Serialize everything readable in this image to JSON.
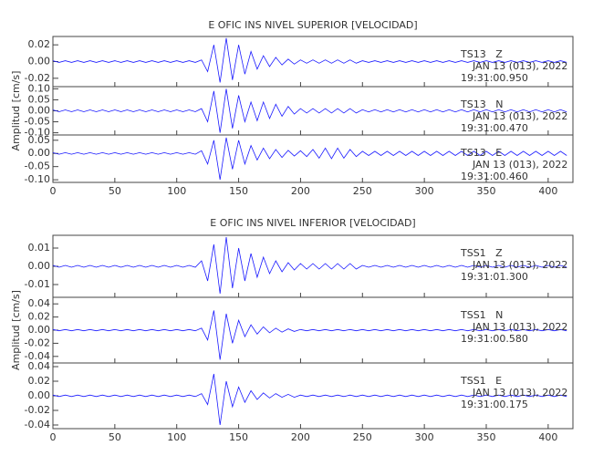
{
  "chart_data": [
    {
      "type": "line",
      "title": "E OFIC INS NIVEL SUPERIOR [VELOCIDAD]",
      "y_label": "Amplitud [cm/s]",
      "x": [
        0,
        5,
        10,
        15,
        20,
        25,
        30,
        35,
        40,
        45,
        50,
        55,
        60,
        65,
        70,
        75,
        80,
        85,
        90,
        95,
        100,
        105,
        110,
        115,
        120,
        125,
        130,
        135,
        140,
        145,
        150,
        155,
        160,
        165,
        170,
        175,
        180,
        185,
        190,
        195,
        200,
        205,
        210,
        215,
        220,
        225,
        230,
        235,
        240,
        245,
        250,
        255,
        260,
        265,
        270,
        275,
        280,
        285,
        290,
        295,
        300,
        305,
        310,
        315,
        320,
        325,
        330,
        335,
        340,
        345,
        350,
        355,
        360,
        365,
        370,
        375,
        380,
        385,
        390,
        395,
        400,
        405,
        410,
        415
      ],
      "xlim": [
        0,
        420
      ],
      "xticks": [
        0,
        50,
        100,
        150,
        200,
        250,
        300,
        350,
        400
      ],
      "panels": [
        {
          "ylim": [
            -0.03,
            0.03
          ],
          "yticks": [
            {
              "value": 0.02,
              "label": "0.02"
            },
            {
              "value": 0,
              "label": "0.00"
            },
            {
              "value": -0.02,
              "label": "-0.02"
            }
          ],
          "date": "JAN 13 (013), 2022",
          "time": "19:31:00.950",
          "series": [
            {
              "name": "TS13   Z",
              "color": "#1a1aff",
              "values": [
                0.001,
                -0.001,
                0.001,
                -0.001,
                0.001,
                -0.001,
                0.001,
                -0.001,
                0.001,
                -0.001,
                0.001,
                -0.001,
                0.001,
                -0.001,
                0.001,
                -0.001,
                0.001,
                -0.001,
                0.001,
                -0.001,
                0.001,
                -0.001,
                0.001,
                -0.001,
                0.002,
                -0.012,
                0.02,
                -0.025,
                0.028,
                -0.022,
                0.02,
                -0.015,
                0.012,
                -0.009,
                0.007,
                -0.006,
                0.005,
                -0.004,
                0.003,
                -0.003,
                0.002,
                -0.002,
                0.002,
                -0.002,
                0.002,
                -0.002,
                0.002,
                -0.002,
                0.002,
                -0.002,
                0.001,
                -0.001,
                0.001,
                -0.001,
                0.001,
                -0.001,
                0.001,
                -0.001,
                0.001,
                -0.001,
                0.001,
                -0.001,
                0.001,
                -0.001,
                0.001,
                -0.001,
                0.001,
                -0.001,
                0.001,
                -0.001,
                0.001,
                -0.001,
                0.001,
                -0.001,
                0.001,
                -0.001,
                0.001,
                -0.001,
                0.001,
                -0.001,
                0.001,
                -0.001,
                0.001,
                -0.001
              ]
            }
          ]
        },
        {
          "ylim": [
            -0.11,
            0.11
          ],
          "yticks": [
            {
              "value": 0.1,
              "label": "0.10"
            },
            {
              "value": 0.05,
              "label": "0.05"
            },
            {
              "value": 0,
              "label": "0.00"
            },
            {
              "value": -0.05,
              "label": "-0.05"
            },
            {
              "value": -0.1,
              "label": "-0.10"
            }
          ],
          "date": "JAN 13 (013), 2022",
          "time": "19:31:00.470",
          "series": [
            {
              "name": "TS13   N",
              "color": "#1a1aff",
              "values": [
                0.004,
                -0.004,
                0.004,
                -0.004,
                0.004,
                -0.004,
                0.004,
                -0.004,
                0.004,
                -0.004,
                0.004,
                -0.004,
                0.004,
                -0.004,
                0.004,
                -0.004,
                0.004,
                -0.004,
                0.004,
                -0.004,
                0.004,
                -0.004,
                0.004,
                -0.004,
                0.01,
                -0.05,
                0.09,
                -0.1,
                0.1,
                -0.08,
                0.07,
                -0.05,
                0.04,
                -0.045,
                0.04,
                -0.035,
                0.03,
                -0.025,
                0.02,
                -0.015,
                0.01,
                -0.01,
                0.01,
                -0.01,
                0.01,
                -0.01,
                0.01,
                -0.01,
                0.01,
                -0.01,
                0.005,
                -0.005,
                0.005,
                -0.005,
                0.005,
                -0.005,
                0.005,
                -0.005,
                0.005,
                -0.005,
                0.005,
                -0.005,
                0.005,
                -0.005,
                0.005,
                -0.005,
                0.005,
                -0.005,
                0.005,
                -0.005,
                0.005,
                -0.005,
                0.005,
                -0.005,
                0.005,
                -0.005,
                0.005,
                -0.005,
                0.005,
                -0.005,
                0.005,
                -0.005,
                0.005,
                -0.005
              ]
            }
          ]
        },
        {
          "ylim": [
            -0.11,
            0.07
          ],
          "yticks": [
            {
              "value": 0.05,
              "label": "0.05"
            },
            {
              "value": 0,
              "label": "0.00"
            },
            {
              "value": -0.05,
              "label": "-0.05"
            },
            {
              "value": -0.1,
              "label": "-0.10"
            }
          ],
          "date": "JAN 13 (013), 2022",
          "time": "19:31:00.460",
          "series": [
            {
              "name": "TS13   E",
              "color": "#1a1aff",
              "values": [
                0.003,
                -0.003,
                0.003,
                -0.003,
                0.003,
                -0.003,
                0.003,
                -0.003,
                0.003,
                -0.003,
                0.003,
                -0.003,
                0.003,
                -0.003,
                0.003,
                -0.003,
                0.003,
                -0.003,
                0.003,
                -0.003,
                0.003,
                -0.003,
                0.003,
                -0.003,
                0.01,
                -0.04,
                0.05,
                -0.1,
                0.06,
                -0.06,
                0.05,
                -0.04,
                0.03,
                -0.025,
                0.02,
                -0.02,
                0.015,
                -0.015,
                0.012,
                -0.01,
                0.01,
                -0.012,
                0.015,
                -0.018,
                0.02,
                -0.02,
                0.02,
                -0.018,
                0.015,
                -0.012,
                0.008,
                -0.008,
                0.008,
                -0.008,
                0.008,
                -0.008,
                0.008,
                -0.008,
                0.008,
                -0.008,
                0.008,
                -0.008,
                0.008,
                -0.008,
                0.008,
                -0.008,
                0.008,
                -0.008,
                0.008,
                -0.008,
                0.008,
                -0.008,
                0.008,
                -0.008,
                0.008,
                -0.008,
                0.008,
                -0.008,
                0.008,
                -0.008,
                0.008,
                -0.008,
                0.008,
                -0.008
              ]
            }
          ]
        }
      ]
    },
    {
      "type": "line",
      "title": "E OFIC INS NIVEL INFERIOR [VELOCIDAD]",
      "y_label": "Amplitud [cm/s]",
      "x": [
        0,
        5,
        10,
        15,
        20,
        25,
        30,
        35,
        40,
        45,
        50,
        55,
        60,
        65,
        70,
        75,
        80,
        85,
        90,
        95,
        100,
        105,
        110,
        115,
        120,
        125,
        130,
        135,
        140,
        145,
        150,
        155,
        160,
        165,
        170,
        175,
        180,
        185,
        190,
        195,
        200,
        205,
        210,
        215,
        220,
        225,
        230,
        235,
        240,
        245,
        250,
        255,
        260,
        265,
        270,
        275,
        280,
        285,
        290,
        295,
        300,
        305,
        310,
        315,
        320,
        325,
        330,
        335,
        340,
        345,
        350,
        355,
        360,
        365,
        370,
        375,
        380,
        385,
        390,
        395,
        400,
        405,
        410,
        415
      ],
      "xlim": [
        0,
        420
      ],
      "xticks": [
        0,
        50,
        100,
        150,
        200,
        250,
        300,
        350,
        400
      ],
      "panels": [
        {
          "ylim": [
            -0.017,
            0.017
          ],
          "yticks": [
            {
              "value": 0.01,
              "label": "0.01"
            },
            {
              "value": 0,
              "label": "0.00"
            },
            {
              "value": -0.01,
              "label": "-0.01"
            }
          ],
          "date": "JAN 13 (013), 2022",
          "time": "19:31:01.300",
          "series": [
            {
              "name": "TSS1   Z",
              "color": "#1a1aff",
              "values": [
                0.0005,
                -0.0005,
                0.0005,
                -0.0005,
                0.0005,
                -0.0005,
                0.0005,
                -0.0005,
                0.0005,
                -0.0005,
                0.0005,
                -0.0005,
                0.0005,
                -0.0005,
                0.0005,
                -0.0005,
                0.0005,
                -0.0005,
                0.0005,
                -0.0005,
                0.0005,
                -0.0005,
                0.0005,
                -0.0005,
                0.003,
                -0.008,
                0.012,
                -0.015,
                0.016,
                -0.012,
                0.01,
                -0.008,
                0.007,
                -0.006,
                0.005,
                -0.004,
                0.003,
                -0.003,
                0.002,
                -0.002,
                0.0015,
                -0.0015,
                0.0015,
                -0.0015,
                0.0015,
                -0.0015,
                0.0015,
                -0.0015,
                0.0015,
                -0.0015,
                0.0005,
                -0.0005,
                0.0005,
                -0.0005,
                0.0005,
                -0.0005,
                0.0005,
                -0.0005,
                0.0005,
                -0.0005,
                0.0005,
                -0.0005,
                0.0005,
                -0.0005,
                0.0005,
                -0.0005,
                0.0005,
                -0.0005,
                0.0005,
                -0.0005,
                0.0005,
                -0.0005,
                0.0005,
                -0.0005,
                0.0005,
                -0.0005,
                0.0005,
                -0.0005,
                0.0005,
                -0.0005,
                0.0005,
                -0.0005,
                0.0005,
                -0.0005
              ]
            }
          ]
        },
        {
          "ylim": [
            -0.05,
            0.05
          ],
          "yticks": [
            {
              "value": 0.04,
              "label": "0.04"
            },
            {
              "value": 0.02,
              "label": "0.02"
            },
            {
              "value": 0,
              "label": "0.00"
            },
            {
              "value": -0.02,
              "label": "-0.02"
            },
            {
              "value": -0.04,
              "label": "-0.04"
            }
          ],
          "date": "JAN 13 (013), 2022",
          "time": "19:31:00.580",
          "series": [
            {
              "name": "TSS1   N",
              "color": "#1a1aff",
              "values": [
                0.001,
                -0.001,
                0.001,
                -0.001,
                0.001,
                -0.001,
                0.001,
                -0.001,
                0.001,
                -0.001,
                0.001,
                -0.001,
                0.001,
                -0.001,
                0.001,
                -0.001,
                0.001,
                -0.001,
                0.001,
                -0.001,
                0.001,
                -0.001,
                0.001,
                -0.001,
                0.003,
                -0.015,
                0.03,
                -0.045,
                0.025,
                -0.02,
                0.015,
                -0.01,
                0.008,
                -0.006,
                0.005,
                -0.004,
                0.003,
                -0.003,
                0.002,
                -0.002,
                0.001,
                -0.001,
                0.001,
                -0.001,
                0.001,
                -0.001,
                0.001,
                -0.001,
                0.001,
                -0.001,
                0.001,
                -0.001,
                0.001,
                -0.001,
                0.001,
                -0.001,
                0.001,
                -0.001,
                0.001,
                -0.001,
                0.001,
                -0.001,
                0.001,
                -0.001,
                0.001,
                -0.001,
                0.001,
                -0.001,
                0.001,
                -0.001,
                0.001,
                -0.001,
                0.001,
                -0.001,
                0.001,
                -0.001,
                0.001,
                -0.001,
                0.001,
                -0.001,
                0.001,
                -0.001,
                0.001,
                -0.001
              ]
            }
          ]
        },
        {
          "ylim": [
            -0.045,
            0.045
          ],
          "yticks": [
            {
              "value": 0.04,
              "label": "0.04"
            },
            {
              "value": 0.02,
              "label": "0.02"
            },
            {
              "value": 0,
              "label": "0.00"
            },
            {
              "value": -0.02,
              "label": "-0.02"
            },
            {
              "value": -0.04,
              "label": "-0.04"
            }
          ],
          "date": "JAN 13 (013), 2022",
          "time": "19:31:00.175",
          "series": [
            {
              "name": "TSS1   E",
              "color": "#1a1aff",
              "values": [
                0.001,
                -0.001,
                0.001,
                -0.001,
                0.001,
                -0.001,
                0.001,
                -0.001,
                0.001,
                -0.001,
                0.001,
                -0.001,
                0.001,
                -0.001,
                0.001,
                -0.001,
                0.001,
                -0.001,
                0.001,
                -0.001,
                0.001,
                -0.001,
                0.001,
                -0.001,
                0.003,
                -0.012,
                0.03,
                -0.04,
                0.02,
                -0.015,
                0.012,
                -0.009,
                0.007,
                -0.005,
                0.004,
                -0.003,
                0.003,
                -0.002,
                0.002,
                -0.002,
                0.001,
                -0.001,
                0.001,
                -0.001,
                0.001,
                -0.001,
                0.001,
                -0.001,
                0.001,
                -0.001,
                0.001,
                -0.001,
                0.001,
                -0.001,
                0.001,
                -0.001,
                0.001,
                -0.001,
                0.001,
                -0.001,
                0.001,
                -0.001,
                0.001,
                -0.001,
                0.001,
                -0.001,
                0.001,
                -0.001,
                0.001,
                -0.001,
                0.001,
                -0.001,
                0.001,
                -0.001,
                0.001,
                -0.001,
                0.001,
                -0.001,
                0.001,
                -0.001,
                0.001,
                -0.001,
                0.001,
                -0.001
              ]
            }
          ]
        }
      ]
    }
  ]
}
